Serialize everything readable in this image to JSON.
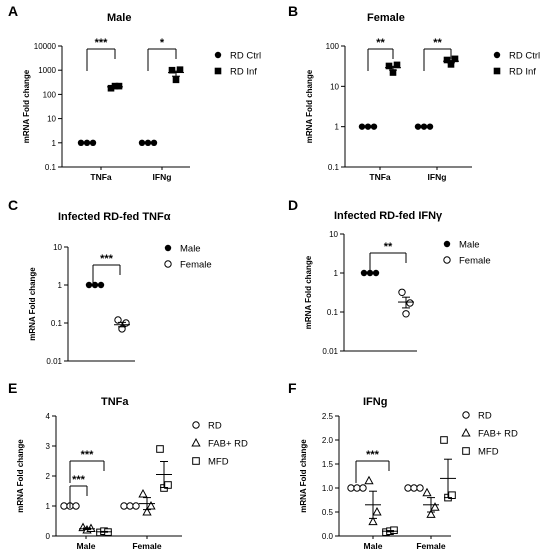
{
  "chart_data": [
    {
      "panel": "A",
      "type": "scatter",
      "title": "Male",
      "ylabel": "mRNA Fold change",
      "yscale": "log",
      "ylim": [
        0.1,
        10000
      ],
      "yticks": [
        "0.1",
        "1",
        "10",
        "100",
        "1000",
        "10000"
      ],
      "categories": [
        "TNFa",
        "IFNg"
      ],
      "series": [
        {
          "name": "RD Ctrl",
          "marker": "circle-filled",
          "points": [
            [
              1,
              1,
              1
            ],
            [
              1,
              1,
              1
            ]
          ],
          "mean": [
            1,
            1
          ]
        },
        {
          "name": "RD Inf",
          "marker": "square-filled",
          "points": [
            [
              180,
              220,
              220
            ],
            [
              1000,
              400,
              1050
            ]
          ],
          "mean": [
            205,
            800
          ]
        }
      ],
      "significance": [
        "***",
        "*"
      ]
    },
    {
      "panel": "B",
      "type": "scatter",
      "title": "Female",
      "ylabel": "mRNA Fold change",
      "yscale": "log",
      "ylim": [
        0.1,
        100
      ],
      "yticks": [
        "0.1",
        "1",
        "10",
        "100"
      ],
      "categories": [
        "TNFa",
        "IFNg"
      ],
      "series": [
        {
          "name": "RD Ctrl",
          "marker": "circle-filled",
          "points": [
            [
              1,
              1,
              1
            ],
            [
              1,
              1,
              1
            ]
          ],
          "mean": [
            1,
            1
          ]
        },
        {
          "name": "RD Inf",
          "marker": "square-filled",
          "points": [
            [
              32,
              22,
              34
            ],
            [
              45,
              35,
              48
            ]
          ],
          "mean": [
            29,
            42
          ]
        }
      ],
      "significance": [
        "**",
        "**"
      ]
    },
    {
      "panel": "C",
      "type": "scatter",
      "title": "Infected RD-fed TNFα",
      "ylabel": "mRNA Fold change",
      "yscale": "log",
      "ylim": [
        0.01,
        10
      ],
      "yticks": [
        "0.01",
        "0.1",
        "1",
        "10"
      ],
      "categories": [
        "Male",
        "Female"
      ],
      "series": [
        {
          "name": "Male",
          "marker": "circle-filled",
          "points": [
            1,
            1,
            1
          ],
          "mean": 1
        },
        {
          "name": "Female",
          "marker": "circle-open",
          "points": [
            0.12,
            0.07,
            0.1
          ],
          "mean": 0.09
        }
      ],
      "significance": [
        "***"
      ]
    },
    {
      "panel": "D",
      "type": "scatter",
      "title": "Infected RD-fed IFNγ",
      "ylabel": "mRNA Fold change",
      "yscale": "log",
      "ylim": [
        0.01,
        10
      ],
      "yticks": [
        "0.01",
        "0.1",
        "1",
        "10"
      ],
      "categories": [
        "Male",
        "Female"
      ],
      "series": [
        {
          "name": "Male",
          "marker": "circle-filled",
          "points": [
            1,
            1,
            1
          ],
          "mean": 1
        },
        {
          "name": "Female",
          "marker": "circle-open",
          "points": [
            0.32,
            0.09,
            0.17
          ],
          "mean": 0.18
        }
      ],
      "significance": [
        "**"
      ]
    },
    {
      "panel": "E",
      "type": "scatter",
      "title": "TNFa",
      "ylabel": "mRNA Fold change",
      "yscale": "linear",
      "ylim": [
        0,
        4
      ],
      "yticks": [
        "0",
        "1",
        "2",
        "3",
        "4"
      ],
      "categories": [
        "Male",
        "Female"
      ],
      "series": [
        {
          "name": "RD",
          "marker": "circle-open",
          "points": [
            [
              1,
              1,
              1
            ],
            [
              1,
              1,
              1
            ]
          ],
          "mean": [
            1,
            1
          ]
        },
        {
          "name": "FAB+ RD",
          "marker": "triangle-open",
          "points": [
            [
              0.28,
              0.2,
              0.25
            ],
            [
              1.4,
              0.8,
              1.0
            ]
          ],
          "mean": [
            0.24,
            1.08
          ]
        },
        {
          "name": "MFD",
          "marker": "square-open",
          "points": [
            [
              0.12,
              0.16,
              0.13
            ],
            [
              2.9,
              1.6,
              1.7
            ]
          ],
          "mean": [
            0.14,
            2.05
          ]
        }
      ],
      "significance": [
        "***",
        "***"
      ]
    },
    {
      "panel": "F",
      "type": "scatter",
      "title": "IFNg",
      "ylabel": "mRNA Fold change",
      "yscale": "linear",
      "ylim": [
        0,
        2.5
      ],
      "yticks": [
        "0.0",
        "0.5",
        "1.0",
        "1.5",
        "2.0",
        "2.5"
      ],
      "categories": [
        "Male",
        "Female"
      ],
      "series": [
        {
          "name": "RD",
          "marker": "circle-open",
          "points": [
            [
              1,
              1,
              1
            ],
            [
              1,
              1,
              1
            ]
          ],
          "mean": [
            1,
            1
          ]
        },
        {
          "name": "FAB+ RD",
          "marker": "triangle-open",
          "points": [
            [
              1.15,
              0.3,
              0.5
            ],
            [
              0.9,
              0.45,
              0.6
            ]
          ],
          "mean": [
            0.65,
            0.65
          ]
        },
        {
          "name": "MFD",
          "marker": "square-open",
          "points": [
            [
              0.08,
              0.1,
              0.12
            ],
            [
              2.0,
              0.8,
              0.85
            ]
          ],
          "mean": [
            0.1,
            1.2
          ]
        }
      ],
      "significance": [
        "***"
      ]
    }
  ]
}
